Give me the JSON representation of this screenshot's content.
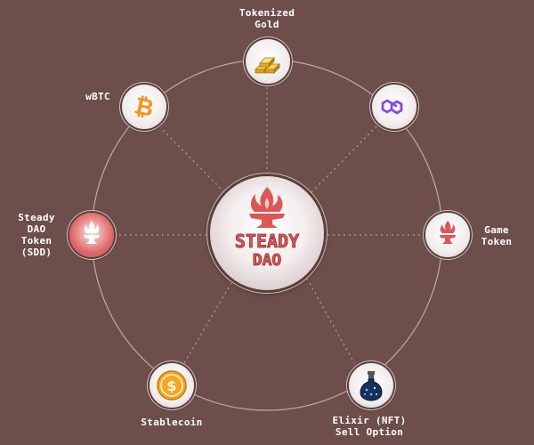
{
  "diagram": {
    "center": {
      "label_line1": "STEADY",
      "label_line2": "DAO",
      "icon": "flame-anvil-logo"
    },
    "nodes": [
      {
        "id": "gold",
        "label_line1": "Tokenized",
        "label_line2": "Gold",
        "icon": "gold-bars-icon"
      },
      {
        "id": "polygon",
        "icon": "polygon-icon"
      },
      {
        "id": "game-token",
        "label_line1": "Game",
        "label_line2": "Token",
        "icon": "flame-anvil-icon"
      },
      {
        "id": "elixir",
        "label_line1": "Elixir (NFT)",
        "label_line2": "Sell Option",
        "icon": "potion-bottle-icon"
      },
      {
        "id": "stablecoin",
        "label": "Stablecoin",
        "icon": "dollar-coin-icon"
      },
      {
        "id": "sdd",
        "label_line1": "Steady",
        "label_line2": "DAO",
        "label_line3": "Token",
        "label_line4": "(SDD)",
        "icon": "flame-anvil-icon"
      },
      {
        "id": "wbtc",
        "label": "wBTC",
        "icon": "bitcoin-icon"
      }
    ]
  },
  "colors": {
    "background": "#6e4e4a",
    "ring": "#cbb8b5",
    "accent_red": "#e05555",
    "bitcoin_orange": "#f7931a",
    "polygon_purple": "#8247e5",
    "gold": "#e8b92a"
  }
}
